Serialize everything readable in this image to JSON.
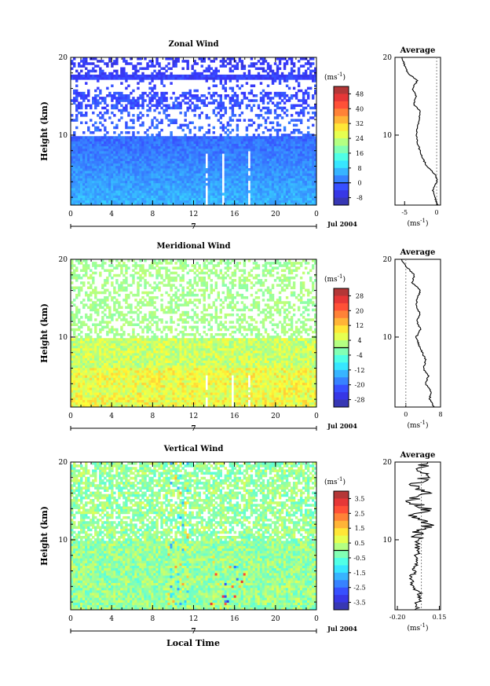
{
  "figure": {
    "xlabel": "Local Time",
    "date_label": "Jul 2004",
    "day_label": "7",
    "colorbar_unit": "(ms",
    "colorbar_unit_exp": "-1",
    "colorbar_unit_close": ")"
  },
  "chart_data": [
    {
      "type": "heatmap",
      "title": "Zonal Wind",
      "ylabel": "Height (km)",
      "x_ticks": [
        "0",
        "4",
        "8",
        "12",
        "16",
        "20",
        "0"
      ],
      "xlim": [
        0,
        24
      ],
      "y_ticks": [
        "20",
        "10"
      ],
      "ylim": [
        1,
        20
      ],
      "colorbar_ticks": [
        "48",
        "40",
        "32",
        "24",
        "16",
        "8",
        "0",
        "-8"
      ],
      "colorbar_range": [
        -12,
        52
      ],
      "profile": {
        "title": "Average",
        "x_ticks": [
          "-5",
          "0"
        ],
        "xlim": [
          -6.5,
          0.6
        ],
        "xlabel": "(ms",
        "xlabel_exp": "-1",
        "heights": [
          1,
          2,
          3,
          4,
          5,
          6,
          7,
          8,
          9,
          10,
          11,
          12,
          13,
          14,
          15,
          16,
          17,
          18,
          19,
          20
        ],
        "values": [
          0.2,
          -0.3,
          -0.6,
          0.1,
          -0.3,
          -1.5,
          -2.2,
          -2.6,
          -3.0,
          -3.2,
          -3.0,
          -2.8,
          -2.5,
          -3.6,
          -3.2,
          -3.8,
          -3.0,
          -4.5,
          -5.0,
          -5.4
        ]
      }
    },
    {
      "type": "heatmap",
      "title": "Meridional Wind",
      "ylabel": "Height (km)",
      "x_ticks": [
        "0",
        "4",
        "8",
        "12",
        "16",
        "20",
        "0"
      ],
      "xlim": [
        0,
        24
      ],
      "y_ticks": [
        "20",
        "10"
      ],
      "ylim": [
        1,
        20
      ],
      "colorbar_ticks": [
        "28",
        "20",
        "12",
        "4",
        "-4",
        "-12",
        "-20",
        "-28"
      ],
      "colorbar_range": [
        -32,
        32
      ],
      "profile": {
        "title": "Average",
        "x_ticks": [
          "0",
          "8"
        ],
        "xlim": [
          -2.5,
          8
        ],
        "xlabel": "(ms",
        "xlabel_exp": "-1",
        "heights": [
          1,
          2,
          3,
          4,
          5,
          6,
          7,
          8,
          9,
          10,
          11,
          12,
          13,
          14,
          15,
          16,
          17,
          18,
          19,
          20
        ],
        "values": [
          6.5,
          5.5,
          5.8,
          4.6,
          5.2,
          4.0,
          4.6,
          3.8,
          3.0,
          2.4,
          3.4,
          2.6,
          3.2,
          2.4,
          2.6,
          3.4,
          1.4,
          2.0,
          0.2,
          -1.0
        ]
      }
    },
    {
      "type": "heatmap",
      "title": "Vertical Wind",
      "ylabel": "Height (km)",
      "x_ticks": [
        "0",
        "4",
        "8",
        "12",
        "16",
        "20",
        "0"
      ],
      "xlim": [
        0,
        24
      ],
      "y_ticks": [
        "20",
        "10"
      ],
      "ylim": [
        1,
        20
      ],
      "colorbar_ticks": [
        "3.5",
        "2.5",
        "1.5",
        "0.5",
        "-0.5",
        "-1.5",
        "-2.5",
        "-3.5"
      ],
      "colorbar_range": [
        -4,
        4
      ],
      "profile": {
        "title": "Average",
        "x_ticks": [
          "-0.20",
          "0.15"
        ],
        "xlim": [
          -0.22,
          0.16
        ],
        "xlabel": "(ms",
        "xlabel_exp": "-1",
        "heights": [
          1,
          2,
          3,
          4,
          5,
          6,
          7,
          8,
          9,
          10,
          11,
          12,
          13,
          14,
          15,
          16,
          17,
          18,
          19,
          20
        ],
        "values": [
          -0.04,
          -0.03,
          -0.01,
          -0.06,
          -0.09,
          -0.06,
          -0.05,
          -0.04,
          -0.03,
          -0.03,
          -0.02,
          0.06,
          -0.08,
          0.05,
          -0.09,
          0.04,
          -0.05,
          0.04,
          -0.02,
          0.05
        ]
      }
    }
  ]
}
